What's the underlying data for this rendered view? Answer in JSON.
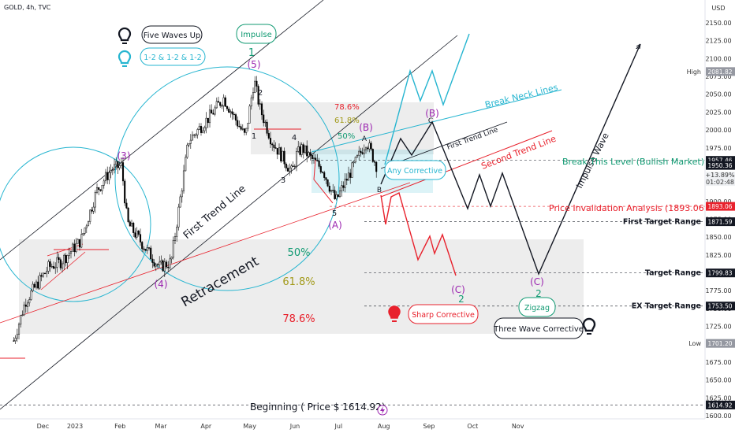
{
  "header": {
    "symbol": "GOLD, 4h, TVC",
    "currency": "USD"
  },
  "colors": {
    "cyan": "#26b5d0",
    "red": "#e8212c",
    "purple": "#9c27b0",
    "green": "#109a72",
    "olive": "#a29a1a",
    "black": "#131722",
    "up": "#000000",
    "down": "#000000"
  },
  "chart_data": {
    "type": "candlestick",
    "title": "GOLD, 4h, TVC",
    "x_ticks": [
      "Dec",
      "2023",
      "Feb",
      "Mar",
      "Apr",
      "May",
      "Jun",
      "Jul",
      "Aug",
      "Sep",
      "Oct",
      "Nov"
    ],
    "y_ticks": [
      1600,
      1625,
      1650,
      1675,
      1700,
      1725,
      1750,
      1775,
      1800,
      1825,
      1850,
      1875,
      1900,
      1925,
      1950,
      1975,
      2000,
      2025,
      2050,
      2075,
      2100,
      2125,
      2150
    ],
    "ylim": [
      1595,
      2165
    ],
    "price_path": [
      [
        "2022-11-20",
        1705
      ],
      [
        "2022-11-28",
        1760
      ],
      [
        "2022-12-08",
        1790
      ],
      [
        "2022-12-14",
        1808
      ],
      [
        "2022-12-22",
        1815
      ],
      [
        "2023-01-05",
        1845
      ],
      [
        "2023-01-16",
        1915
      ],
      [
        "2023-01-26",
        1945
      ],
      [
        "2023-02-02",
        1950
      ],
      [
        "2023-02-06",
        1870
      ],
      [
        "2023-02-20",
        1830
      ],
      [
        "2023-02-28",
        1808
      ],
      [
        "2023-03-08",
        1815
      ],
      [
        "2023-03-20",
        1985
      ],
      [
        "2023-04-04",
        2020
      ],
      [
        "2023-04-13",
        2045
      ],
      [
        "2023-04-28",
        1990
      ],
      [
        "2023-05-04",
        2070
      ],
      [
        "2023-05-08",
        2030
      ],
      [
        "2023-05-16",
        1985
      ],
      [
        "2023-05-24",
        1960
      ],
      [
        "2023-05-30",
        1940
      ],
      [
        "2023-06-02",
        1965
      ],
      [
        "2023-06-06",
        1975
      ],
      [
        "2023-06-12",
        1960
      ],
      [
        "2023-06-20",
        1945
      ],
      [
        "2023-06-29",
        1900
      ],
      [
        "2023-07-05",
        1925
      ],
      [
        "2023-07-14",
        1960
      ],
      [
        "2023-07-20",
        1985
      ],
      [
        "2023-07-25",
        1960
      ],
      [
        "2023-07-27",
        1950
      ],
      [
        "2023-07-28",
        1950
      ]
    ],
    "price_levels": [
      {
        "label": "High",
        "value": 2081.82,
        "tag": "2081.82",
        "color": "#9598a1"
      },
      {
        "label": "",
        "value": 1957.46,
        "tag": "1957.46",
        "color": "#131722"
      },
      {
        "label": "",
        "value": 1950.36,
        "tag": "1950.36",
        "color": "#131722"
      },
      {
        "label": "",
        "value": 1893.06,
        "tag": "1893.06",
        "color": "#e8212c"
      },
      {
        "label": "First Target Range",
        "value": 1871.59,
        "tag": "1871.59",
        "color": "#131722"
      },
      {
        "label": "Target Range",
        "value": 1799.83,
        "tag": "1799.83",
        "color": "#131722"
      },
      {
        "label": "EX Target Range",
        "value": 1753.5,
        "tag": "1753.50",
        "color": "#131722"
      },
      {
        "label": "Low",
        "value": 1701.2,
        "tag": "1701.20",
        "color": "#9598a1"
      },
      {
        "label": "",
        "value": 1614.92,
        "tag": "1614.92",
        "color": "#131722"
      }
    ],
    "price_tag_extra": [
      "1950.36",
      "+13.89%",
      "01:02:48"
    ]
  },
  "labels": {
    "five_waves_up": "Five Waves Up",
    "one_two": "1-2 & 1-2 & 1-2",
    "impulse": "Impulse",
    "wave1": "1",
    "wave5": "(5)",
    "wave3": "(3)",
    "wave4": "(4)",
    "w2": "2",
    "w1": "1",
    "w3": "3",
    "w4": "4",
    "w5": "5",
    "waveA": "(A)",
    "waveB": "(B)",
    "waveC": "(C)",
    "wave2": "2",
    "smallA": "A",
    "smallB": "B",
    "smallC": "C",
    "first_trend_line": "First Trend Line",
    "first_trend_line_small": "First Trend Line",
    "second_trend_line": "Second Trend Line",
    "break_neck": "Break Neck Lines",
    "break_level": "Break This Level (Bullish Market)",
    "any_corrective": "Any Corrective",
    "price_invalidation": "Price Invalidation Analysis (1893.06)",
    "retracement": "Retracement",
    "fib50": "50%",
    "fib618": "61.8%",
    "fib786": "78.6%",
    "fib_small_786": "78.6%",
    "fib_small_618": "61.8%",
    "fib_small_50": "50%",
    "sharp_corrective": "Sharp Corrective",
    "zigzag": "Zigzag",
    "three_wave": "Three Wave Corrective",
    "impulse_wave": "Impulse Wave",
    "beginning": "Beginning ( Price $ 1614.92)"
  }
}
